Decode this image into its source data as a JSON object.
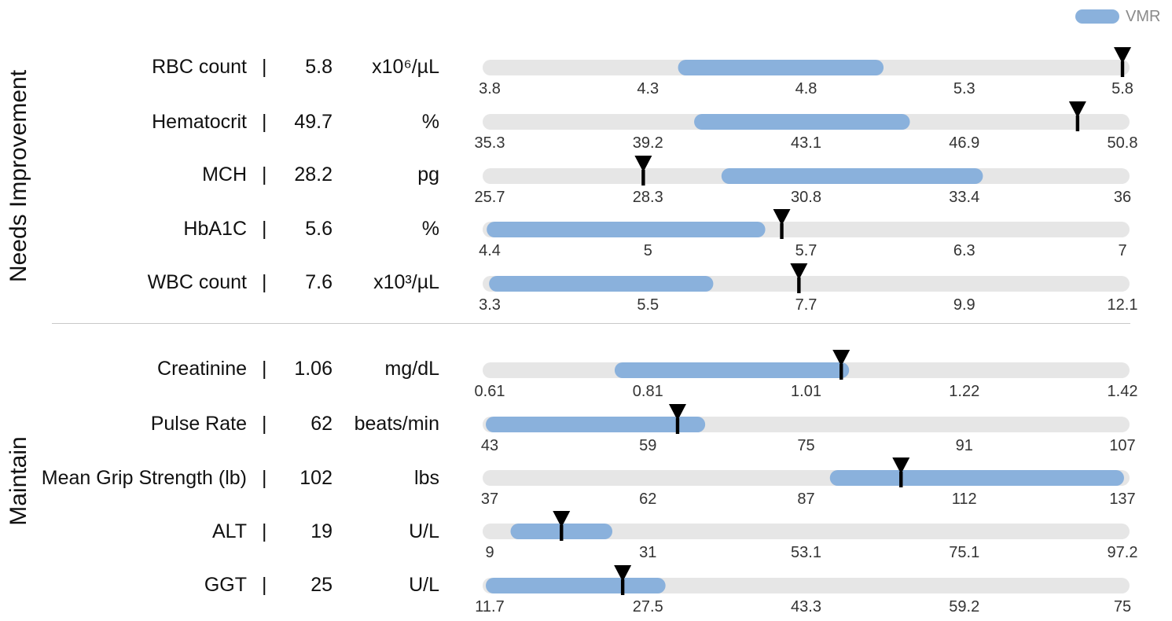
{
  "legend": {
    "label": "VMR",
    "color": "#8ab1dc"
  },
  "groups": [
    {
      "label": "Needs Improvement"
    },
    {
      "label": "Maintain"
    }
  ],
  "colors": {
    "track": "#e6e6e6",
    "range": "#8ab1dc",
    "marker": "#000000",
    "tick_text": "#333333"
  },
  "chart_data": {
    "type": "bullet",
    "rows": [
      {
        "name": "RBC count",
        "value": "5.8",
        "unit": "x10⁶/µL",
        "ticks": [
          "3.8",
          "4.3",
          "4.8",
          "5.3",
          "5.8"
        ],
        "min": 3.8,
        "max": 5.8,
        "range": [
          4.42,
          5.02
        ],
        "marker": 5.8
      },
      {
        "name": "Hematocrit",
        "value": "49.7",
        "unit": "%",
        "ticks": [
          "35.3",
          "39.2",
          "43.1",
          "46.9",
          "50.8"
        ],
        "min": 35.3,
        "max": 50.8,
        "range": [
          40.5,
          45.4
        ],
        "marker": 49.7
      },
      {
        "name": "MCH",
        "value": "28.2",
        "unit": "pg",
        "ticks": [
          "25.7",
          "28.3",
          "30.8",
          "33.4",
          "36"
        ],
        "min": 25.7,
        "max": 36,
        "range": [
          29.6,
          33.6
        ],
        "marker": 28.2
      },
      {
        "name": "HbA1C",
        "value": "5.6",
        "unit": "%",
        "ticks": [
          "4.4",
          "5",
          "5.7",
          "6.3",
          "7"
        ],
        "min": 4.4,
        "max": 7,
        "range": [
          4.42,
          5.5
        ],
        "marker": 5.6
      },
      {
        "name": "WBC count",
        "value": "7.6",
        "unit": "x10³/µL",
        "ticks": [
          "3.3",
          "5.5",
          "7.7",
          "9.9",
          "12.1"
        ],
        "min": 3.3,
        "max": 12.1,
        "range": [
          3.4,
          6.3
        ],
        "marker": 7.6
      },
      {
        "name": "Creatinine",
        "value": "1.06",
        "unit": "mg/dL",
        "ticks": [
          "0.61",
          "0.81",
          "1.01",
          "1.22",
          "1.42"
        ],
        "min": 0.61,
        "max": 1.42,
        "range": [
          0.78,
          1.06
        ],
        "marker": 1.06
      },
      {
        "name": "Pulse Rate",
        "value": "62",
        "unit": "beats/min",
        "ticks": [
          "43",
          "59",
          "75",
          "91",
          "107"
        ],
        "min": 43,
        "max": 107,
        "range": [
          43,
          64
        ],
        "marker": 62
      },
      {
        "name": "Mean Grip Strength (lb)",
        "value": "102",
        "unit": "lbs",
        "ticks": [
          "37",
          "62",
          "87",
          "112",
          "137"
        ],
        "min": 37,
        "max": 137,
        "range": [
          92,
          136
        ],
        "marker": 102
      },
      {
        "name": "ALT",
        "value": "19",
        "unit": "U/L",
        "ticks": [
          "9",
          "31",
          "53.1",
          "75.1",
          "97.2"
        ],
        "min": 9,
        "max": 97.2,
        "range": [
          13,
          25
        ],
        "marker": 19
      },
      {
        "name": "GGT",
        "value": "25",
        "unit": "U/L",
        "ticks": [
          "11.7",
          "27.5",
          "43.3",
          "59.2",
          "75"
        ],
        "min": 11.7,
        "max": 75,
        "range": [
          12,
          28.5
        ],
        "marker": 25
      }
    ]
  }
}
